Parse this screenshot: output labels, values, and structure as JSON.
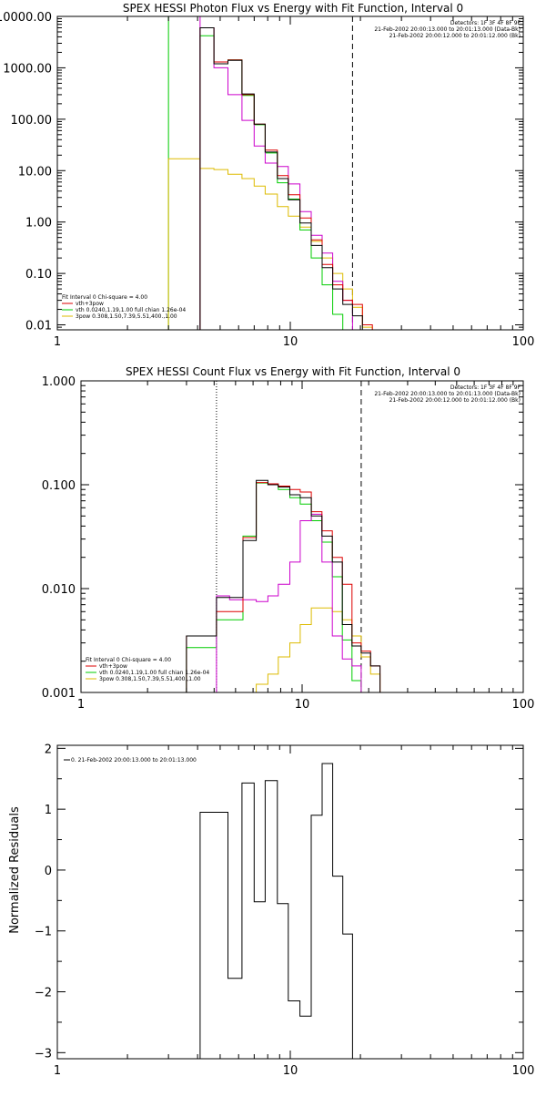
{
  "chart_data": [
    {
      "type": "line",
      "title": "SPEX HESSI Photon Flux vs Energy with Fit Function, Interval 0",
      "x_scale": "log",
      "y_scale": "log",
      "xlim": [
        1,
        100
      ],
      "ylim": [
        0.008,
        10000
      ],
      "x_ticks": [
        1,
        10,
        100
      ],
      "x_tick_labels": [
        "1",
        "10",
        "100"
      ],
      "y_ticks": [
        0.01,
        0.1,
        1,
        10,
        100,
        1000,
        10000
      ],
      "y_tick_labels": [
        "0.01",
        "0.10",
        "1.00",
        "10.00",
        "100.00",
        "1000.00",
        "10000.00"
      ],
      "header_lines": [
        "Detectors: 1F 3F 4F 8F 9F",
        "21-Feb-2002 20:00:13.000 to 20:01:13.000 (Data-Bk)",
        "21-Feb-2002 20:00:12.000 to 20:01:12.000 (Bk)"
      ],
      "fit_info_lines": [
        "Fit Interval 0   Chi-square = 4.00",
        "vth+3pow",
        "vth 0.0240,1.19,1.00  full chian 1.26e-04",
        "3pow 0.308,1.50,7.39,5.51,400.,1.00"
      ],
      "colors": {
        "data": "#000000",
        "background": "#cc00cc",
        "total": "#dd0000",
        "vth": "#00cc00",
        "pow": "#ddbb00"
      },
      "vlines": [
        {
          "x": 3.0,
          "style": "solid",
          "color": "#00cc00"
        },
        {
          "x": 4.1,
          "style": "solid",
          "color": "#cc00cc"
        },
        {
          "x": 18.5,
          "style": "dashed",
          "color": "#000000"
        }
      ],
      "bin_edges": [
        3.0,
        3.55,
        4.1,
        4.7,
        5.4,
        6.2,
        7.0,
        7.8,
        8.8,
        9.8,
        11.0,
        12.3,
        13.7,
        15.2,
        16.8,
        18.5,
        20.4,
        22.5
      ],
      "series": [
        {
          "key": "data",
          "values": [
            null,
            null,
            6000,
            1200,
            1400,
            310,
            80,
            23,
            7,
            2.7,
            0.96,
            0.35,
            0.13,
            0.05,
            0.025,
            0.015,
            null
          ]
        },
        {
          "key": "background",
          "values": [
            null,
            null,
            6000,
            1000,
            300,
            95,
            30,
            14,
            12,
            5.5,
            1.6,
            0.55,
            0.25,
            0.07,
            0.03,
            null,
            null
          ]
        },
        {
          "key": "total",
          "values": [
            null,
            null,
            6000,
            1300,
            1420,
            300,
            80,
            25,
            8,
            3.4,
            1.2,
            0.45,
            0.15,
            0.06,
            0.03,
            0.025,
            0.01
          ]
        },
        {
          "key": "vth",
          "values": [
            null,
            null,
            4200,
            1300,
            1420,
            290,
            78,
            22,
            5.8,
            2.8,
            0.7,
            0.2,
            0.06,
            0.016,
            null,
            null,
            null
          ]
        },
        {
          "key": "pow",
          "values": [
            17,
            17,
            11,
            10.5,
            8.5,
            7,
            5,
            3.5,
            2,
            1.3,
            0.8,
            0.42,
            0.2,
            0.1,
            0.05,
            0.022,
            0.009
          ]
        }
      ]
    },
    {
      "type": "line",
      "title": "SPEX HESSI Count Flux vs Energy with Fit Function, Interval 0",
      "x_scale": "log",
      "y_scale": "log",
      "xlim": [
        1,
        100
      ],
      "ylim": [
        0.001,
        1
      ],
      "x_ticks": [
        1,
        10,
        100
      ],
      "x_tick_labels": [
        "1",
        "10",
        "100"
      ],
      "y_ticks": [
        0.001,
        0.01,
        0.1,
        1
      ],
      "y_tick_labels": [
        "0.001",
        "0.010",
        "0.100",
        "1.000"
      ],
      "header_lines": [
        "Detectors: 1F 3F 4F 8F 9F",
        "21-Feb-2002 20:00:13.000 to 20:01:13.000 (Data-Bk)",
        "21-Feb-2002 20:00:12.000 to 20:01:12.000 (Bk)"
      ],
      "fit_info_lines": [
        "Fit Interval 0   Chi-square = 4.00",
        "vth+3pow",
        "vth 0.0240,1.19,1.00  full chian 1.26e-04",
        "3pow 0.308,1.50,7.39,5.51,400.,1.00"
      ],
      "colors": {
        "data": "#000000",
        "background": "#cc00cc",
        "total": "#dd0000",
        "vth": "#00cc00",
        "pow": "#ddbb00"
      },
      "vlines": [
        {
          "x": 4.1,
          "style": "dotted",
          "color": "#000000"
        },
        {
          "x": 18.5,
          "style": "dashed",
          "color": "#000000"
        }
      ],
      "bin_edges": [
        3.0,
        3.55,
        4.1,
        4.7,
        5.4,
        6.2,
        7.0,
        7.8,
        8.8,
        9.8,
        11.0,
        12.3,
        13.7,
        15.2,
        16.8,
        18.5,
        20.4,
        22.5
      ],
      "series": [
        {
          "key": "data",
          "values": [
            0.0035,
            0.0035,
            0.0082,
            0.0082,
            0.029,
            0.11,
            0.1,
            0.095,
            0.08,
            0.075,
            0.05,
            0.032,
            0.018,
            0.0045,
            0.0028,
            0.0024,
            0.0018
          ]
        },
        {
          "key": "background",
          "values": [
            null,
            null,
            0.0085,
            0.0078,
            0.0078,
            0.0075,
            0.0085,
            0.011,
            0.018,
            0.045,
            0.052,
            0.018,
            0.0035,
            0.0021,
            0.0018,
            null,
            null
          ]
        },
        {
          "key": "total",
          "values": [
            0.0035,
            0.0035,
            0.006,
            0.006,
            0.031,
            0.105,
            0.102,
            0.097,
            0.09,
            0.085,
            0.055,
            0.036,
            0.02,
            0.011,
            0.003,
            0.0025,
            0.0018
          ]
        },
        {
          "key": "vth",
          "values": [
            0.0027,
            0.0027,
            0.005,
            0.005,
            0.032,
            0.104,
            0.1,
            0.09,
            0.075,
            0.065,
            0.045,
            0.028,
            0.013,
            0.0032,
            0.0013,
            null,
            null
          ]
        },
        {
          "key": "pow",
          "values": [
            null,
            null,
            null,
            null,
            0.001,
            0.0012,
            0.0015,
            0.0022,
            0.003,
            0.0045,
            0.0065,
            0.0065,
            0.006,
            0.005,
            0.0035,
            0.0022,
            0.0015
          ]
        }
      ]
    },
    {
      "type": "line",
      "title": "",
      "x_scale": "log",
      "y_scale": "linear",
      "xlim": [
        1,
        100
      ],
      "ylim": [
        -3.1,
        2.05
      ],
      "x_ticks": [
        1,
        10,
        100
      ],
      "x_tick_labels": [
        "1",
        "10",
        "100"
      ],
      "y_ticks": [
        -3,
        -2,
        -1,
        0,
        1,
        2
      ],
      "y_tick_labels": [
        "−3",
        "−2",
        "−1",
        "0",
        "1",
        "2"
      ],
      "ylabel": "Normalized Residuals",
      "legend": "0. 21-Feb-2002 20:00:13.000 to 20:01:13.000",
      "colors": {
        "data": "#000000"
      },
      "bin_edges": [
        4.1,
        4.7,
        5.4,
        6.2,
        7.0,
        7.8,
        8.8,
        9.8,
        11.0,
        12.3,
        13.7,
        15.2,
        16.8,
        18.5
      ],
      "series": [
        {
          "key": "data",
          "values": [
            0.95,
            0.95,
            -1.78,
            1.43,
            -0.52,
            1.47,
            -0.55,
            -2.15,
            -2.4,
            0.9,
            1.75,
            -0.1,
            -1.05
          ]
        }
      ]
    }
  ]
}
